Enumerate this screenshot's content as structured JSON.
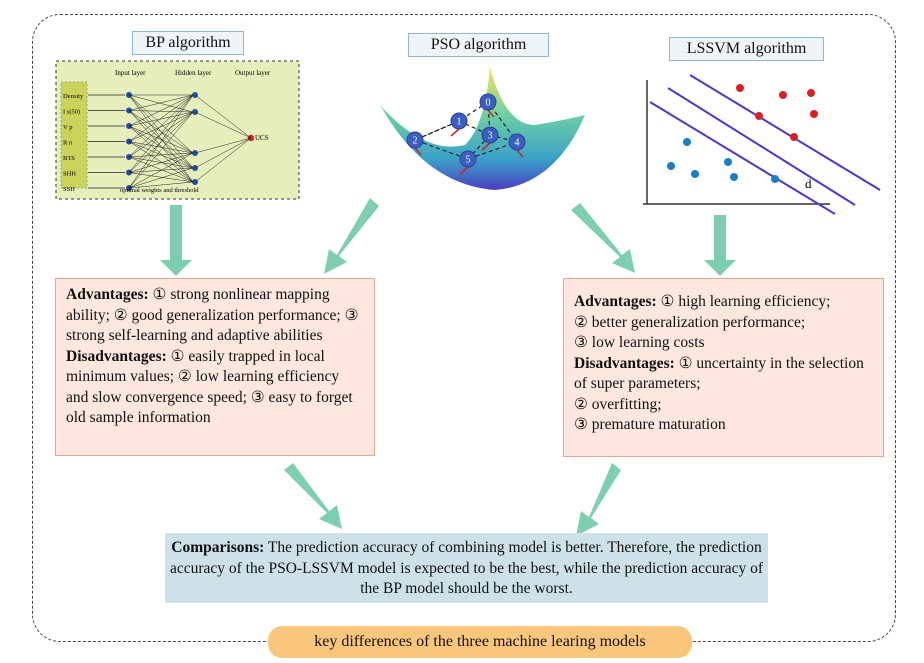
{
  "models": {
    "bp": {
      "label": "BP algorithm",
      "figure": {
        "input_layer": "Input layer",
        "hidden_layer": "Hidden layer",
        "output_layer": "Output layer",
        "inputs": [
          "Density",
          "I s(50)",
          "V p",
          "R n",
          "BTS",
          "SHH",
          "SSH"
        ],
        "output": "UCS",
        "note": "optimal weights and threshold"
      }
    },
    "pso": {
      "label": "PSO algorithm",
      "figure": {
        "particles": [
          "0",
          "1",
          "2",
          "3",
          "4",
          "5"
        ]
      }
    },
    "lssvm": {
      "label": "LSSVM algorithm",
      "figure": {
        "margin_label": "d"
      }
    }
  },
  "left_box": {
    "adv_title": "Advantages:",
    "adv_text": " ① strong nonlinear mapping ability; ② good generalization performance; ③ strong self-learning and adaptive abilities",
    "dis_title": "Disadvantages:",
    "dis_text": " ① easily trapped in local minimum values; ② low learning efficiency and slow convergence speed; ③ easy to forget old sample information"
  },
  "right_box": {
    "adv_title": "Advantages:",
    "adv_lines": [
      " ① high learning efficiency;",
      "② better generalization performance;",
      "③ low learning costs"
    ],
    "dis_title": "Disadvantages:",
    "dis_lines": [
      " ① uncertainty in the selection of super parameters;",
      "② overfitting;",
      "③ premature maturation"
    ]
  },
  "comparison": {
    "title": "Comparisons:",
    "text": " The prediction accuracy of combining model is better. Therefore, the prediction accuracy of the PSO-LSSVM model is expected to be the best, while the prediction accuracy of the BP model should be the worst."
  },
  "caption": "key differences of the three machine learing models",
  "colors": {
    "arrow": "#7dcfb0",
    "box_fill": "#fde7df",
    "comparison_fill": "#cfe1e8",
    "caption_fill": "#f9c77c"
  }
}
